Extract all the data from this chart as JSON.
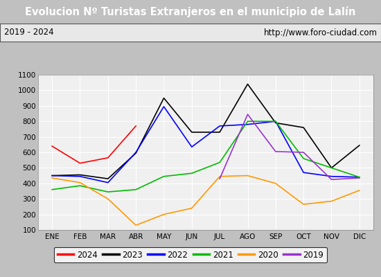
{
  "title": "Evolucion Nº Turistas Extranjeros en el municipio de Lalín",
  "subtitle_left": "2019 - 2024",
  "subtitle_right": "http://www.foro-ciudad.com",
  "months": [
    "ENE",
    "FEB",
    "MAR",
    "ABR",
    "MAY",
    "JUN",
    "JUL",
    "AGO",
    "SEP",
    "OCT",
    "NOV",
    "DIC"
  ],
  "ylim": [
    100,
    1100
  ],
  "yticks": [
    100,
    200,
    300,
    400,
    500,
    600,
    700,
    800,
    900,
    1000,
    1100
  ],
  "series": {
    "2024": {
      "color": "#ff0000",
      "values": [
        640,
        530,
        565,
        770,
        null,
        null,
        null,
        null,
        null,
        null,
        null,
        null
      ]
    },
    "2023": {
      "color": "#000000",
      "values": [
        450,
        455,
        430,
        595,
        950,
        730,
        730,
        1040,
        790,
        760,
        500,
        645
      ]
    },
    "2022": {
      "color": "#0000ff",
      "values": [
        450,
        445,
        405,
        600,
        895,
        635,
        770,
        780,
        800,
        470,
        445,
        440
      ]
    },
    "2021": {
      "color": "#00bb00",
      "values": [
        360,
        385,
        345,
        360,
        445,
        465,
        535,
        800,
        800,
        560,
        500,
        440
      ]
    },
    "2020": {
      "color": "#ff9900",
      "values": [
        435,
        405,
        300,
        130,
        200,
        240,
        445,
        450,
        400,
        265,
        285,
        355
      ]
    },
    "2019": {
      "color": "#9933cc",
      "values": [
        null,
        null,
        null,
        null,
        null,
        null,
        430,
        845,
        605,
        600,
        425,
        435
      ]
    }
  },
  "title_bg": "#4472c4",
  "title_color": "#ffffff",
  "subtitle_bg": "#e8e8e8",
  "plot_bg": "#f0f0f0",
  "grid_color": "#ffffff",
  "legend_order": [
    "2024",
    "2023",
    "2022",
    "2021",
    "2020",
    "2019"
  ]
}
